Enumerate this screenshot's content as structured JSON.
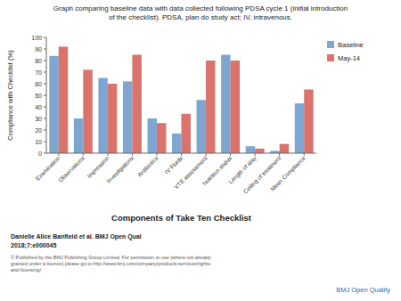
{
  "chart_data": {
    "type": "bar",
    "title": "Graph comparing baseline data with data collected following PDSA cycle 1 (initial introduction\nof the checklist). PDSA, plan do study act; IV, intravenous.",
    "x_label": "Components of Take Ten Checklist",
    "y_label": "Compliance with Checklist (%)",
    "categories": [
      "Examination",
      "Observations",
      "Impression",
      "Investigations",
      "Antibiotics",
      "IV Fluids",
      "VTE assessment",
      "Nutrition status",
      "Length of stay",
      "Ceiling of treatment",
      "Mean Compliance"
    ],
    "series": [
      {
        "name": "Baseline",
        "color": "#7ea6d3",
        "values": [
          84,
          30,
          65,
          62,
          30,
          17,
          46,
          85,
          6,
          2,
          43
        ]
      },
      {
        "name": "May-14",
        "color": "#d9736b",
        "values": [
          92,
          72,
          60,
          85,
          26,
          34,
          80,
          80,
          4,
          8,
          55
        ]
      }
    ],
    "ylim": [
      0,
      100
    ],
    "yticks": [
      0,
      10,
      20,
      30,
      40,
      50,
      60,
      70,
      80,
      90,
      100
    ],
    "grid": false,
    "legend": "right",
    "annotations": [
      "Danielle Alice Banfield et al. BMJ Open Qual",
      "2018;7:e000045",
      "© Published by the BMJ Publishing Group Limited. For permission to use (where not already\ngranted under a licence) please go to http://www.bmj.com/company/products-services/rights-\nand-licensing/",
      "BMJ Open Quality"
    ]
  }
}
